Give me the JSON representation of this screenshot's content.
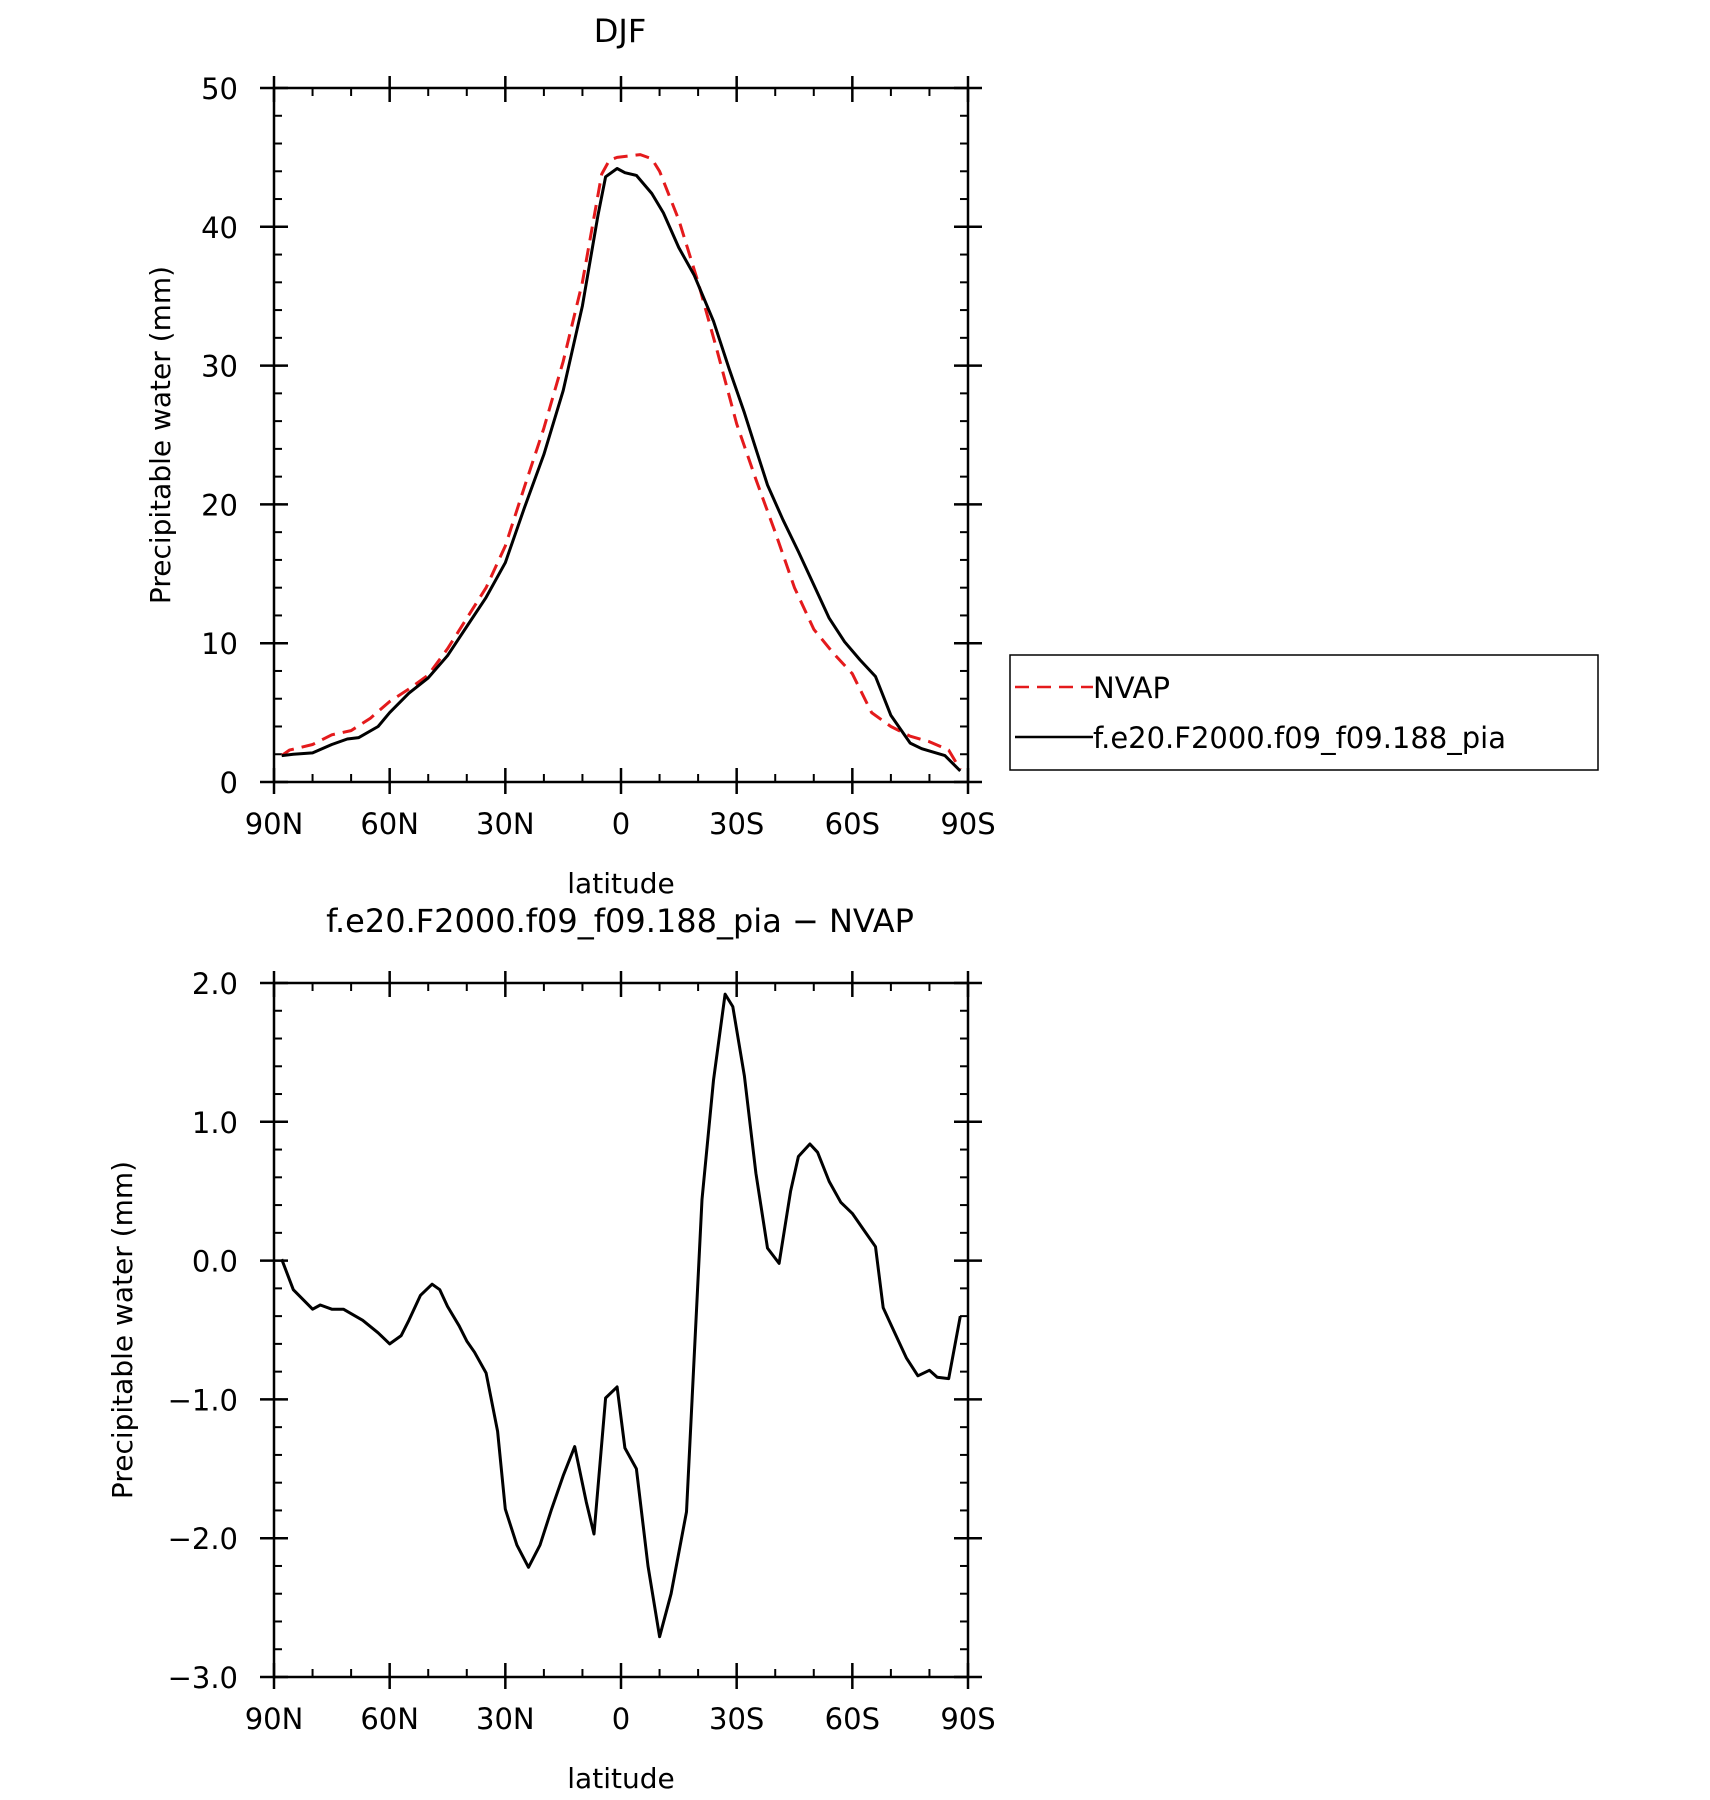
{
  "chart_data": [
    {
      "type": "line",
      "title": "DJF",
      "xlabel": "latitude",
      "ylabel": "Precipitable water (mm)",
      "xlim": [
        90,
        -90
      ],
      "ylim": [
        0,
        50
      ],
      "x_ticks": [
        90,
        60,
        30,
        0,
        -30,
        -60,
        -90
      ],
      "x_tick_labels": [
        "90N",
        "60N",
        "30N",
        "0",
        "30S",
        "60S",
        "90S"
      ],
      "y_ticks": [
        0,
        10,
        20,
        30,
        40,
        50
      ],
      "y_tick_labels": [
        "0",
        "10",
        "20",
        "30",
        "40",
        "50"
      ],
      "legend": {
        "placement": "right",
        "entries": [
          "NVAP",
          "f.e20.F2000.f09_f09.188_pia"
        ]
      },
      "series": [
        {
          "name": "NVAP",
          "color": "#e41a1c",
          "dash": "dashed",
          "x": [
            88,
            86,
            80,
            75,
            70,
            65,
            60,
            55,
            50,
            45,
            40,
            35,
            30,
            25,
            20,
            15,
            10,
            5,
            3,
            1,
            -2,
            -5,
            -8,
            -10,
            -15,
            -20,
            -25,
            -30,
            -35,
            -40,
            -45,
            -50,
            -55,
            -60,
            -65,
            -70,
            -75,
            -80,
            -85,
            -88
          ],
          "y": [
            1.9,
            2.3,
            2.7,
            3.4,
            3.7,
            4.6,
            5.8,
            6.7,
            7.7,
            9.6,
            11.8,
            14.0,
            17.0,
            21.3,
            25.5,
            30.3,
            36.0,
            43.8,
            44.8,
            45.0,
            45.1,
            45.2,
            44.9,
            44.0,
            40.5,
            36.0,
            31.0,
            25.8,
            21.8,
            18.0,
            14.0,
            11.0,
            9.3,
            7.8,
            5.0,
            4.0,
            3.3,
            2.9,
            2.3,
            0.9
          ]
        },
        {
          "name": "f.e20.F2000.f09_f09.188_pia",
          "color": "#000000",
          "dash": "solid",
          "x": [
            88,
            85,
            80,
            75,
            71,
            68,
            63,
            60,
            55,
            50,
            45,
            40,
            35,
            30,
            25,
            20,
            15,
            10,
            6,
            4,
            1,
            -1,
            -4,
            -8,
            -11,
            -15,
            -19,
            -24,
            -28,
            -32,
            -35,
            -38,
            -42,
            -46,
            -50,
            -54,
            -58,
            -62,
            -66,
            -70,
            -75,
            -78,
            -84,
            -88
          ],
          "y": [
            1.9,
            2.0,
            2.1,
            2.7,
            3.1,
            3.2,
            4.0,
            5.0,
            6.4,
            7.5,
            9.1,
            11.2,
            13.3,
            15.8,
            19.8,
            23.6,
            28.2,
            34.3,
            40.8,
            43.6,
            44.2,
            43.9,
            43.7,
            42.4,
            41.0,
            38.5,
            36.5,
            33.2,
            29.8,
            26.6,
            24.0,
            21.4,
            18.9,
            16.6,
            14.2,
            11.8,
            10.1,
            8.8,
            7.6,
            4.8,
            2.8,
            2.4,
            1.9,
            0.8
          ]
        }
      ]
    },
    {
      "type": "line",
      "title": "f.e20.F2000.f09_f09.188_pia − NVAP",
      "xlabel": "latitude",
      "ylabel": "Precipitable water (mm)",
      "xlim": [
        90,
        -90
      ],
      "ylim": [
        -3.0,
        2.0
      ],
      "x_ticks": [
        90,
        60,
        30,
        0,
        -30,
        -60,
        -90
      ],
      "x_tick_labels": [
        "90N",
        "60N",
        "30N",
        "0",
        "30S",
        "60S",
        "90S"
      ],
      "y_ticks": [
        2.0,
        1.0,
        0.0,
        -1.0,
        -2.0,
        -3.0
      ],
      "y_tick_labels": [
        "2.0",
        "1.0",
        "0.0",
        "−1.0",
        "−2.0",
        "−3.0"
      ],
      "series": [
        {
          "color": "#000000",
          "dash": "solid",
          "x": [
            88,
            85,
            80,
            78,
            75,
            72,
            67,
            63,
            60,
            57,
            55,
            52,
            49,
            47,
            45,
            42,
            40,
            38,
            35,
            32,
            30,
            27,
            24,
            21,
            18,
            15,
            12,
            9,
            7,
            4,
            1,
            -1,
            -4,
            -7,
            -10,
            -13,
            -17,
            -21,
            -24,
            -27,
            -29,
            -32,
            -35,
            -38,
            -41,
            -44,
            -46,
            -49,
            -51,
            -54,
            -57,
            -60,
            -63,
            -66,
            -68,
            -71,
            -74,
            -77,
            -80,
            -82,
            -85,
            -88
          ],
          "y": [
            0.01,
            -0.21,
            -0.35,
            -0.32,
            -0.35,
            -0.35,
            -0.43,
            -0.52,
            -0.6,
            -0.54,
            -0.43,
            -0.25,
            -0.17,
            -0.21,
            -0.33,
            -0.47,
            -0.58,
            -0.66,
            -0.81,
            -1.23,
            -1.79,
            -2.05,
            -2.21,
            -2.05,
            -1.79,
            -1.55,
            -1.34,
            -1.74,
            -1.97,
            -0.99,
            -0.91,
            -1.35,
            -1.5,
            -2.2,
            -2.71,
            -2.4,
            -1.81,
            0.44,
            1.3,
            1.92,
            1.83,
            1.33,
            0.63,
            0.09,
            -0.02,
            0.5,
            0.75,
            0.84,
            0.78,
            0.57,
            0.42,
            0.34,
            0.22,
            0.1,
            -0.34,
            -0.52,
            -0.7,
            -0.83,
            -0.79,
            -0.84,
            -0.85,
            -0.4
          ]
        }
      ]
    }
  ]
}
